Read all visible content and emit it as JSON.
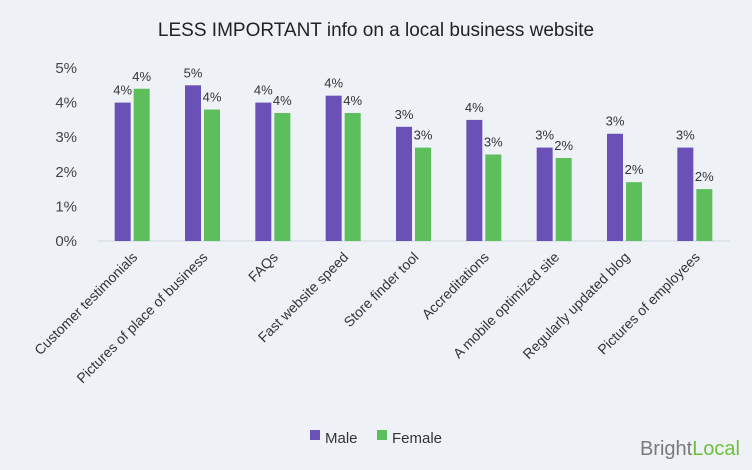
{
  "chart_data": {
    "type": "bar",
    "title": "LESS IMPORTANT info on a local business website",
    "categories": [
      "Customer testimonials",
      "Pictures of place of business",
      "FAQs",
      "Fast website speed",
      "Store finder tool",
      "Accreditations",
      "A mobile optimized site",
      "Regularly updated blog",
      "Pictures of employees"
    ],
    "series": [
      {
        "name": "Male",
        "color": "#6a51b8",
        "values": [
          4.0,
          4.5,
          4.0,
          4.2,
          3.3,
          3.5,
          2.7,
          3.1,
          2.7
        ],
        "labels": [
          "4%",
          "5%",
          "4%",
          "4%",
          "3%",
          "4%",
          "3%",
          "3%",
          "3%"
        ]
      },
      {
        "name": "Female",
        "color": "#5cbf5c",
        "values": [
          4.4,
          3.8,
          3.7,
          3.7,
          2.7,
          2.5,
          2.4,
          1.7,
          1.5
        ],
        "labels": [
          "4%",
          "4%",
          "4%",
          "4%",
          "3%",
          "3%",
          "2%",
          "2%",
          "2%"
        ]
      }
    ],
    "ylim": [
      0,
      5
    ],
    "yticks": [
      "0%",
      "1%",
      "2%",
      "3%",
      "4%",
      "5%"
    ],
    "legend_position": "bottom",
    "grid": false
  },
  "brand": {
    "logo_part1": "Bright",
    "logo_part2": "Local",
    "color_part1": "#7a7a7a",
    "color_part2": "#6dbf3b"
  }
}
